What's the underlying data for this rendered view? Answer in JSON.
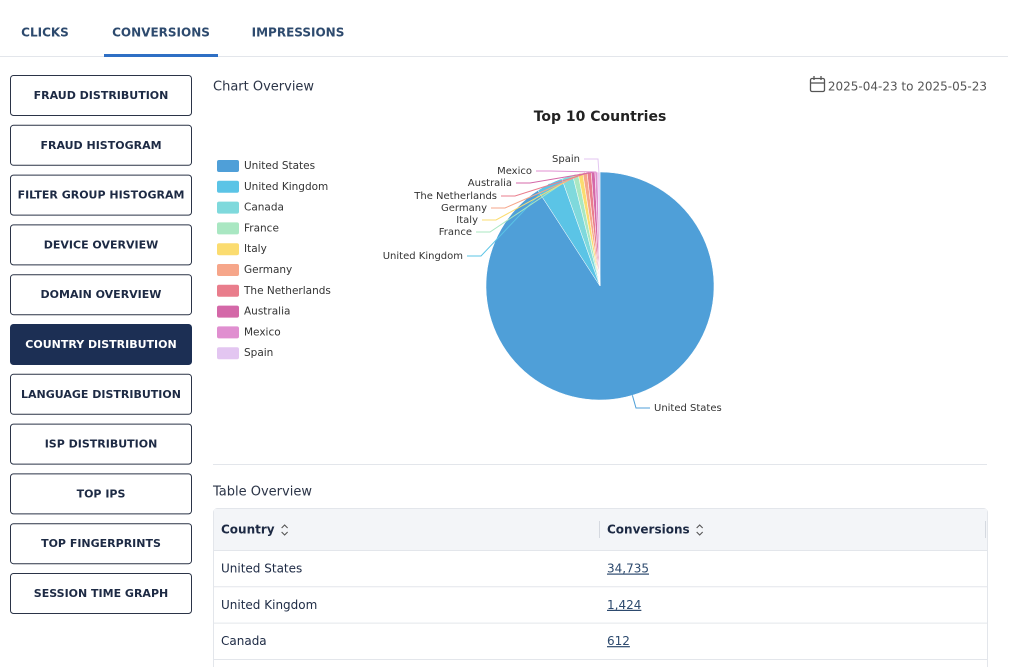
{
  "tabs": [
    "CLICKS",
    "CONVERSIONS",
    "IMPRESSIONS"
  ],
  "active_tab": 1,
  "nav": [
    "FRAUD DISTRIBUTION",
    "FRAUD HISTOGRAM",
    "FILTER GROUP HISTOGRAM",
    "DEVICE OVERVIEW",
    "DOMAIN OVERVIEW",
    "COUNTRY DISTRIBUTION",
    "LANGUAGE DISTRIBUTION",
    "ISP DISTRIBUTION",
    "TOP IPS",
    "TOP FINGERPRINTS",
    "SESSION TIME GRAPH"
  ],
  "active_nav": 5,
  "chart_section": {
    "title": "Chart Overview",
    "date_range": "2025-04-23 to 2025-05-23"
  },
  "chart_data": {
    "type": "pie",
    "title": "Top 10 Countries",
    "categories": [
      "United States",
      "United Kingdom",
      "Canada",
      "France",
      "Italy",
      "Germany",
      "The Netherlands",
      "Australia",
      "Mexico",
      "Spain"
    ],
    "values": [
      34735,
      1424,
      612,
      300,
      250,
      230,
      220,
      200,
      150,
      120
    ],
    "colors": [
      "#4f9fd8",
      "#5bc4e6",
      "#7fd9dc",
      "#a9e7c2",
      "#fbdc70",
      "#f6a68a",
      "#e97d8c",
      "#d468a8",
      "#e08fd0",
      "#e3c6f1"
    ]
  },
  "table": {
    "title": "Table Overview",
    "headers": [
      "Country",
      "Conversions"
    ],
    "rows": [
      [
        "United States",
        "34,735"
      ],
      [
        "United Kingdom",
        "1,424"
      ],
      [
        "Canada",
        "612"
      ]
    ]
  }
}
